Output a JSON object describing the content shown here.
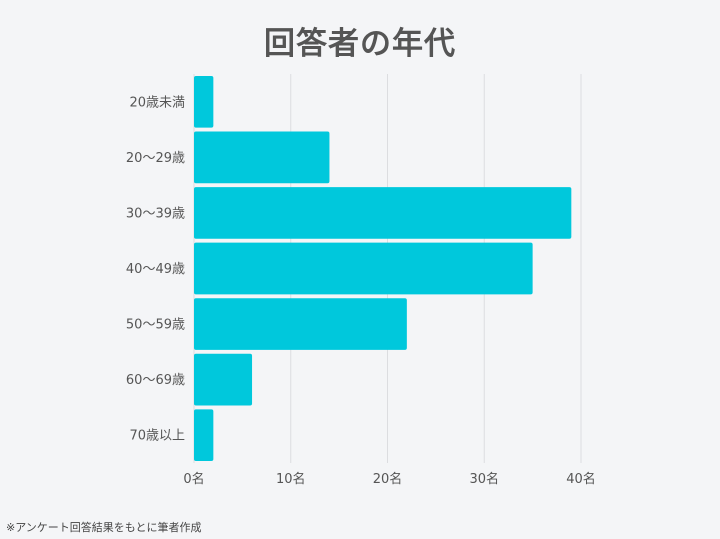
{
  "chart_data": {
    "type": "bar",
    "orientation": "horizontal",
    "title": "回答者の年代",
    "categories": [
      "20歳未満",
      "20〜29歳",
      "30〜39歳",
      "40〜49歳",
      "50〜59歳",
      "60〜69歳",
      "70歳以上"
    ],
    "values": [
      2,
      14,
      39,
      35,
      22,
      6,
      2
    ],
    "x_ticks": [
      0,
      10,
      20,
      30,
      40
    ],
    "x_tick_labels": [
      "0名",
      "10名",
      "20名",
      "30名",
      "40名"
    ],
    "xlim": [
      0,
      40
    ],
    "grid": "vertical",
    "bar_color": "#00c8dc",
    "grid_color": "#dcdde0",
    "legend": "none"
  },
  "footnote": "※アンケート回答結果をもとに筆者作成"
}
